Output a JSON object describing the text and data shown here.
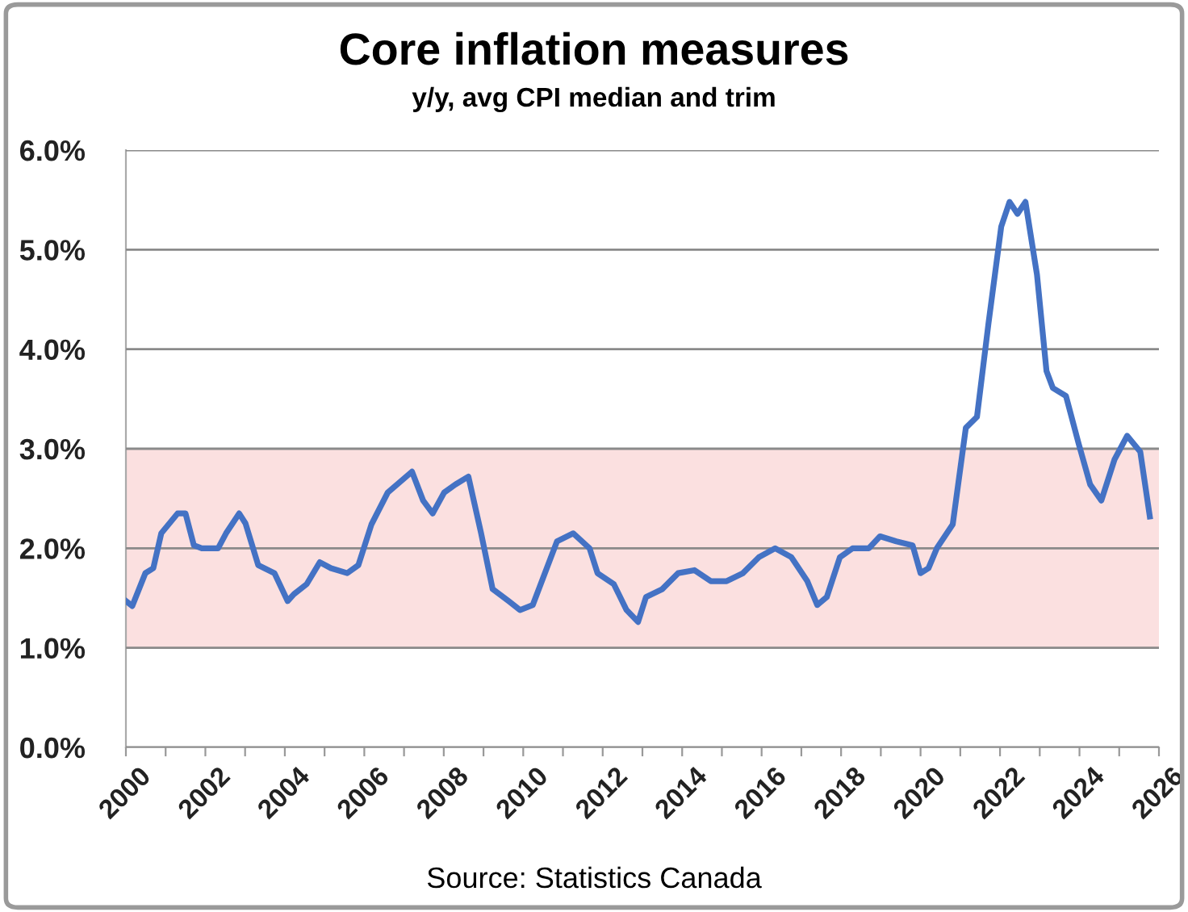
{
  "chart_data": {
    "type": "line",
    "title": "Core inflation measures",
    "subtitle": "y/y, avg CPI median and trim",
    "annotations": [
      "Source: Statistics Canada"
    ],
    "x": [
      2000.0,
      2000.16,
      2000.49,
      2000.69,
      2000.89,
      2001.3,
      2001.5,
      2001.71,
      2001.91,
      2002.32,
      2002.52,
      2002.85,
      2003.01,
      2003.33,
      2003.74,
      2004.07,
      2004.23,
      2004.55,
      2004.88,
      2005.16,
      2005.57,
      2005.85,
      2006.18,
      2006.59,
      2007.2,
      2007.48,
      2007.72,
      2008.01,
      2008.29,
      2008.62,
      2008.94,
      2009.23,
      2009.63,
      2009.92,
      2010.24,
      2010.85,
      2011.26,
      2011.67,
      2011.87,
      2012.28,
      2012.6,
      2012.89,
      2013.09,
      2013.5,
      2013.9,
      2014.31,
      2014.72,
      2015.12,
      2015.53,
      2015.93,
      2016.34,
      2016.75,
      2017.15,
      2017.4,
      2017.64,
      2017.97,
      2018.29,
      2018.7,
      2018.98,
      2019.39,
      2019.8,
      2020.0,
      2020.2,
      2020.41,
      2020.81,
      2021.14,
      2021.42,
      2021.71,
      2022.03,
      2022.24,
      2022.44,
      2022.64,
      2022.93,
      2023.17,
      2023.33,
      2023.66,
      2023.98,
      2024.27,
      2024.55,
      2024.88,
      2025.2,
      2025.53,
      2025.77
    ],
    "series": [
      {
        "color": "#4472c4",
        "values": [
          1.47,
          1.42,
          1.75,
          1.8,
          2.15,
          2.35,
          2.35,
          2.03,
          2.0,
          2.0,
          2.15,
          2.35,
          2.25,
          1.83,
          1.75,
          1.47,
          1.54,
          1.64,
          1.86,
          1.8,
          1.75,
          1.83,
          2.24,
          2.56,
          2.77,
          2.48,
          2.35,
          2.56,
          2.64,
          2.72,
          2.15,
          1.59,
          1.47,
          1.38,
          1.43,
          2.07,
          2.15,
          2.0,
          1.75,
          1.64,
          1.38,
          1.26,
          1.51,
          1.59,
          1.75,
          1.78,
          1.67,
          1.67,
          1.75,
          1.91,
          2.0,
          1.91,
          1.67,
          1.43,
          1.51,
          1.91,
          2.0,
          2.0,
          2.12,
          2.07,
          2.03,
          1.75,
          1.8,
          2.0,
          2.24,
          3.21,
          3.32,
          4.26,
          5.23,
          5.48,
          5.36,
          5.48,
          4.75,
          3.78,
          3.61,
          3.53,
          3.05,
          2.64,
          2.48,
          2.89,
          3.13,
          2.97,
          2.32
        ]
      }
    ],
    "xlim": [
      2000,
      2026
    ],
    "xticks": [
      2000,
      {
        "value": 2001,
        "label": null
      },
      2002,
      {
        "value": 2003,
        "label": null
      },
      2004,
      {
        "value": 2005,
        "label": null
      },
      2006,
      {
        "value": 2007,
        "label": null
      },
      2008,
      {
        "value": 2009,
        "label": null
      },
      2010,
      {
        "value": 2011,
        "label": null
      },
      2012,
      {
        "value": 2013,
        "label": null
      },
      2014,
      {
        "value": 2015,
        "label": null
      },
      2016,
      {
        "value": 2017,
        "label": null
      },
      2018,
      {
        "value": 2019,
        "label": null
      },
      2020,
      {
        "value": 2021,
        "label": null
      },
      2022,
      {
        "value": 2023,
        "label": null
      },
      2024,
      {
        "value": 2025,
        "label": null
      },
      2026
    ],
    "ylim": [
      0,
      6
    ],
    "yticks": [
      {
        "value": 0,
        "label": "0.0%"
      },
      {
        "value": 1,
        "label": "1.0%"
      },
      {
        "value": 2,
        "label": "2.0%"
      },
      {
        "value": 3,
        "label": "3.0%"
      },
      {
        "value": 4,
        "label": "4.0%"
      },
      {
        "value": 5,
        "label": "5.0%"
      },
      {
        "value": 6,
        "label": "6.0%"
      }
    ],
    "bands": [
      {
        "axis": "y",
        "from": 1,
        "to": 3,
        "color": "#fbe0e0"
      }
    ],
    "grid": "y",
    "legend": false,
    "marker": "none",
    "line_style": "solid"
  }
}
